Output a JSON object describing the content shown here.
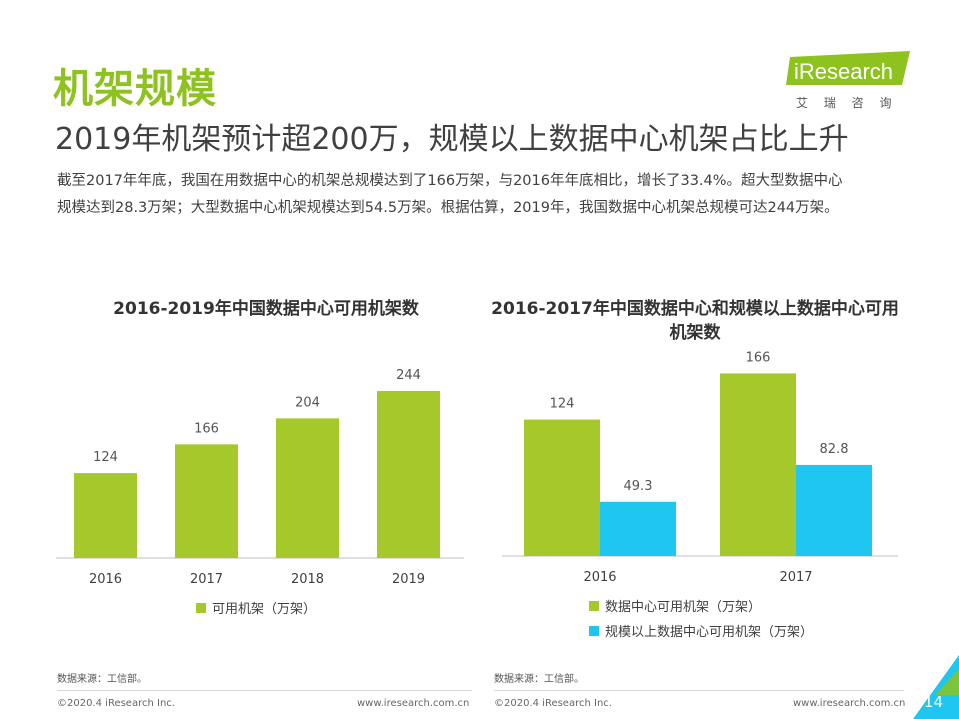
{
  "header": {
    "title": "机架规模",
    "subtitle": "2019年机架预计超200万，规模以上数据中心机架占比上升",
    "intro_line1": "截至2017年年底，我国在用数据中心的机架总规模达到了166万架，与2016年年底相比，增长了33.4%。超大型数据中心",
    "intro_line2": "规模达到28.3万架；大型数据中心机架规模达到54.5万架。根据估算，2019年，我国数据中心机架总规模可达244万架。"
  },
  "logo": {
    "brand": "iResearch",
    "sub": "艾 瑞 咨 询",
    "icon": "iresearch-logo"
  },
  "colors": {
    "green": "#a5c82a",
    "blue": "#1ec6f0",
    "title_green": "#8dc21f",
    "corner": "#1ec6f0"
  },
  "chart_data": [
    {
      "type": "bar",
      "title": "2016-2019年中国数据中心可用机架数",
      "categories": [
        "2016",
        "2017",
        "2018",
        "2019"
      ],
      "series": [
        {
          "name": "可用机架（万架）",
          "values": [
            124,
            166,
            204,
            244
          ],
          "value_labels": [
            "124",
            "166",
            "204",
            "244"
          ]
        }
      ],
      "ylim": [
        0,
        260
      ],
      "legend": "bottom",
      "grid": false
    },
    {
      "type": "bar",
      "title": "2016-2017年中国数据中心和规模以上数据中心可用机架数",
      "categories": [
        "2016",
        "2017"
      ],
      "series": [
        {
          "name": "数据中心可用机架（万架）",
          "values": [
            124,
            166
          ],
          "value_labels": [
            "124",
            "166"
          ]
        },
        {
          "name": "规模以上数据中心可用机架（万架）",
          "values": [
            49.3,
            82.8
          ],
          "value_labels": [
            "49.3",
            "82.8"
          ]
        }
      ],
      "ylim": [
        0,
        180
      ],
      "legend": "bottom",
      "grid": false
    }
  ],
  "sources": {
    "left": "数据来源：工信部。",
    "right": "数据来源：工信部。"
  },
  "footer": {
    "copyright_left": "©2020.4 iResearch Inc.",
    "url_left": "www.iresearch.com.cn",
    "copyright_right": "©2020.4 iResearch Inc.",
    "url_right": "www.iresearch.com.cn",
    "page": "14"
  }
}
